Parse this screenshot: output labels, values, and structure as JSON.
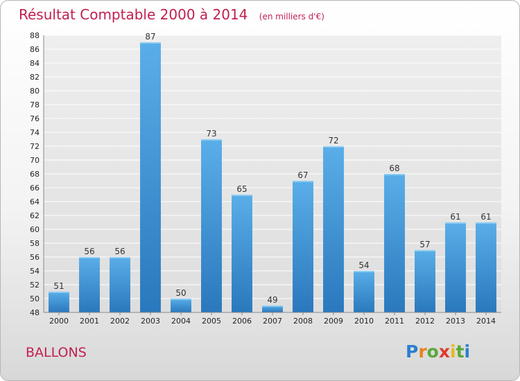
{
  "chart_data": {
    "type": "bar",
    "title": "Résultat Comptable 2000 à 2014",
    "subtitle": "(en milliers d'€)",
    "categories": [
      "2000",
      "2001",
      "2002",
      "2003",
      "2004",
      "2005",
      "2006",
      "2007",
      "2008",
      "2009",
      "2010",
      "2011",
      "2012",
      "2013",
      "2014"
    ],
    "values": [
      51,
      56,
      56,
      87,
      50,
      73,
      65,
      49,
      67,
      72,
      54,
      68,
      57,
      61,
      61
    ],
    "ylim": [
      48,
      88
    ],
    "ytick_step": 2,
    "grid": true,
    "xlabel": "",
    "ylabel": ""
  },
  "commune": "BALLONS",
  "logo": {
    "text": "Proxiti",
    "letters": [
      {
        "char": "P",
        "color": "#2b7fd0"
      },
      {
        "char": "r",
        "color": "#e9821e"
      },
      {
        "char": "o",
        "color": "#58a83a"
      },
      {
        "char": "x",
        "color": "#e03a2f"
      },
      {
        "char": "i",
        "color": "#e9b81e"
      },
      {
        "char": "t",
        "color": "#58a83a"
      },
      {
        "char": "i",
        "color": "#2b7fd0"
      }
    ]
  },
  "colors": {
    "bar_top": "#5aaee8",
    "bar_bottom": "#2a78bd",
    "title": "#c0204f"
  }
}
